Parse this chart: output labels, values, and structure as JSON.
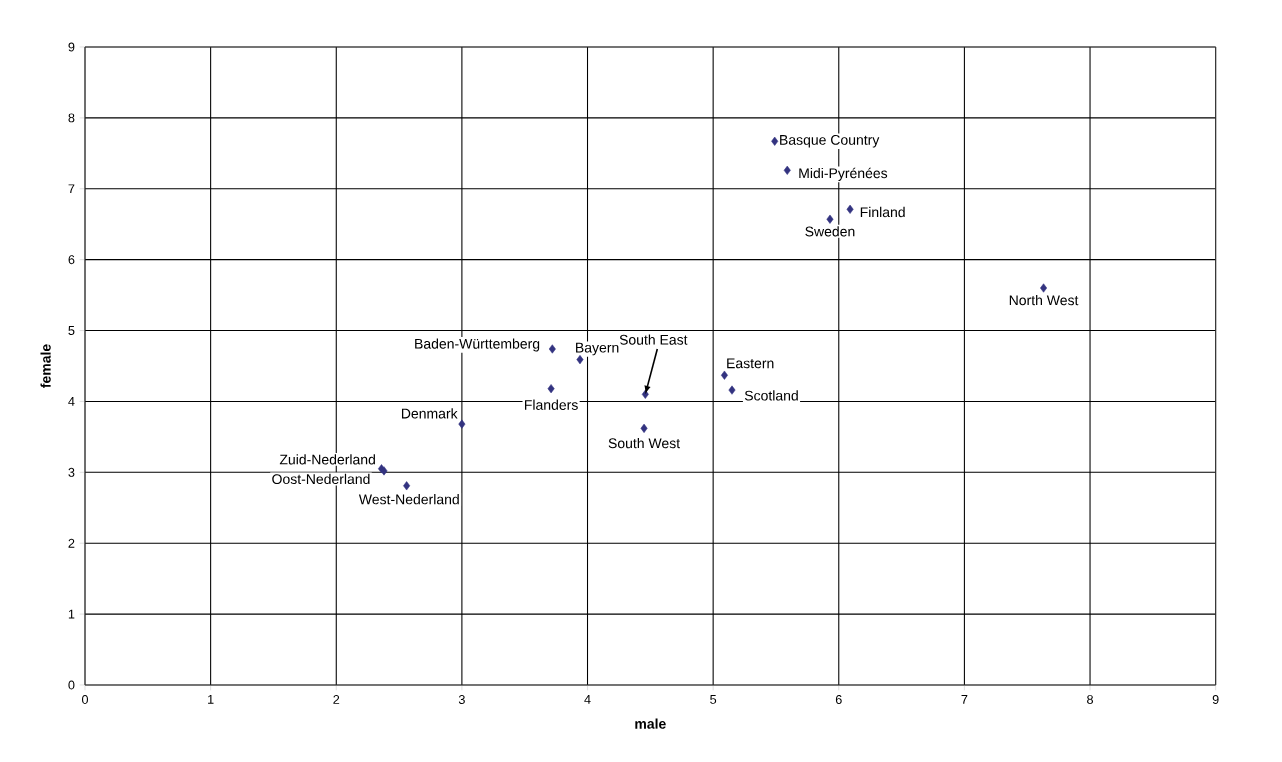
{
  "chart_data": {
    "type": "scatter",
    "xlabel": "male",
    "ylabel": "female",
    "x": [
      5.49,
      5.59,
      6.09,
      5.93,
      7.63,
      5.09,
      5.15,
      4.46,
      4.45,
      3.72,
      3.94,
      3.71,
      3.0,
      2.36,
      2.38,
      2.56
    ],
    "values": [
      7.67,
      7.26,
      6.71,
      6.57,
      5.6,
      4.37,
      4.16,
      4.1,
      3.62,
      4.74,
      4.59,
      4.18,
      3.68,
      3.05,
      3.02,
      2.81
    ],
    "color": "#333380",
    "marker": "diamond",
    "grid": true,
    "xlim": [
      0,
      9
    ],
    "ylim": [
      0,
      9
    ],
    "xticks": [
      0,
      1,
      2,
      3,
      4,
      5,
      6,
      7,
      8,
      9
    ],
    "yticks": [
      0,
      1,
      2,
      3,
      4,
      5,
      6,
      7,
      8,
      9
    ],
    "annotations": [
      {
        "text": "Basque Country",
        "x": 5.49,
        "y": 7.67
      },
      {
        "text": "Midi-Pyrénées",
        "x": 5.59,
        "y": 7.26
      },
      {
        "text": "Finland",
        "x": 6.09,
        "y": 6.71
      },
      {
        "text": "Sweden",
        "x": 5.93,
        "y": 6.57
      },
      {
        "text": "North West",
        "x": 7.63,
        "y": 5.6
      },
      {
        "text": "Eastern",
        "x": 5.09,
        "y": 4.37
      },
      {
        "text": "Scotland",
        "x": 5.15,
        "y": 4.16
      },
      {
        "text": "South East",
        "x": 4.46,
        "y": 4.1
      },
      {
        "text": "South West",
        "x": 4.45,
        "y": 3.62
      },
      {
        "text": "Baden-Württemberg",
        "x": 3.72,
        "y": 4.74
      },
      {
        "text": "Bayern",
        "x": 3.94,
        "y": 4.59
      },
      {
        "text": "Flanders",
        "x": 3.71,
        "y": 4.18
      },
      {
        "text": "Denmark",
        "x": 3.0,
        "y": 3.68
      },
      {
        "text": "Zuid-Nederland",
        "x": 2.36,
        "y": 3.05
      },
      {
        "text": "Oost-Nederland",
        "x": 2.38,
        "y": 3.02
      },
      {
        "text": "West-Nederland",
        "x": 2.56,
        "y": 2.81
      }
    ]
  }
}
